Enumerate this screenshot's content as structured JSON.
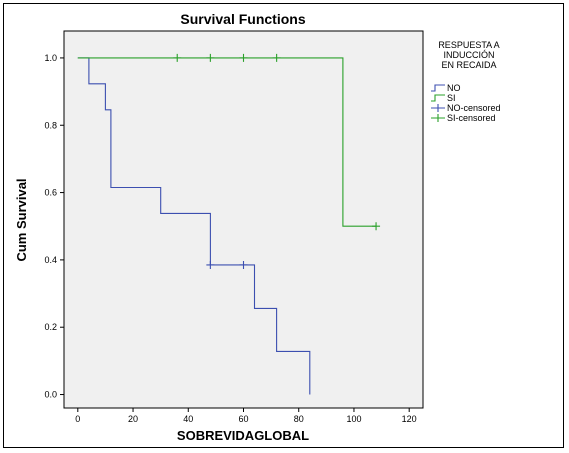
{
  "chart_data": {
    "type": "line",
    "title": "Survival Functions",
    "xlabel": "SOBREVIDAGLOBAL",
    "ylabel": "Cum Survival",
    "xlim": [
      -5,
      125
    ],
    "ylim": [
      -0.04,
      1.08
    ],
    "xticks": [
      0,
      20,
      40,
      60,
      80,
      100,
      120
    ],
    "yticks": [
      0.0,
      0.2,
      0.4,
      0.6,
      0.8,
      1.0
    ],
    "xtick_labels": [
      "0",
      "20",
      "40",
      "60",
      "80",
      "100",
      "120"
    ],
    "ytick_labels": [
      "0.0",
      "0.2",
      "0.4",
      "0.6",
      "0.8",
      "1.0"
    ],
    "grid": false,
    "legend_placement": "right",
    "legend_title": [
      "RESPUESTA A",
      "INDUCCIÓN",
      "EN RECAIDA"
    ],
    "series": [
      {
        "name": "NO",
        "color": "#3c4fb0",
        "step_x": [
          0,
          4,
          4,
          10,
          10,
          12,
          12,
          30,
          30,
          48,
          48,
          64,
          64,
          72,
          72,
          84,
          84
        ],
        "step_y": [
          1.0,
          1.0,
          0.923,
          0.923,
          0.846,
          0.846,
          0.615,
          0.615,
          0.538,
          0.538,
          0.385,
          0.385,
          0.256,
          0.256,
          0.128,
          0.128,
          0.0
        ]
      },
      {
        "name": "SI",
        "color": "#2aa02a",
        "step_x": [
          0,
          96,
          96,
          108
        ],
        "step_y": [
          1.0,
          1.0,
          0.5,
          0.5
        ]
      },
      {
        "name": "NO-censored",
        "color": "#3c4fb0",
        "marks_x": [
          48,
          60
        ],
        "marks_y": [
          0.385,
          0.385
        ]
      },
      {
        "name": "SI-censored",
        "color": "#2aa02a",
        "marks_x": [
          36,
          48,
          60,
          72,
          108
        ],
        "marks_y": [
          1.0,
          1.0,
          1.0,
          1.0,
          0.5
        ]
      }
    ]
  }
}
